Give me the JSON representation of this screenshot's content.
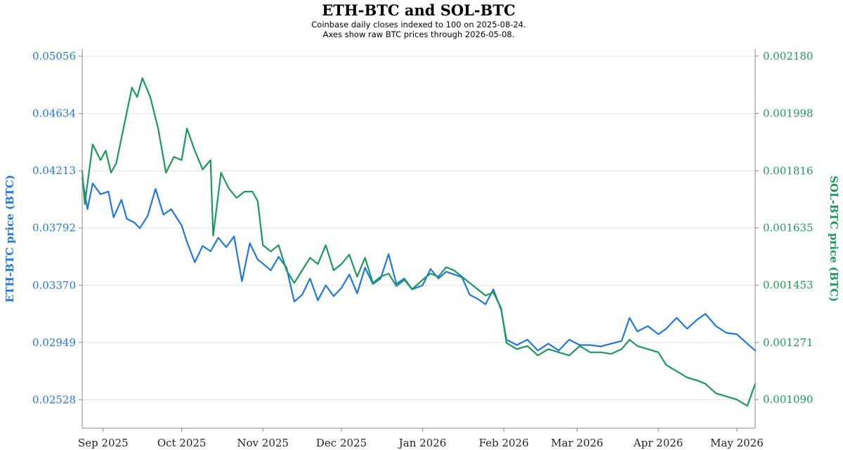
{
  "chart_data": {
    "type": "line",
    "title": "ETH-BTC and SOL-BTC",
    "subtitle_lines": [
      "Coinbase daily closes indexed to 100 on 2025-08-24.",
      "Axes show raw BTC prices through 2026-05-08."
    ],
    "x_range": [
      "2025-08-24",
      "2026-05-08"
    ],
    "x_tick_labels": [
      "Sep 2025",
      "Oct 2025",
      "Nov 2025",
      "Dec 2025",
      "Jan 2026",
      "Feb 2026",
      "Mar 2026",
      "Apr 2026",
      "May 2026"
    ],
    "x_tick_dates": [
      "2025-09-01",
      "2025-10-01",
      "2025-11-01",
      "2025-12-01",
      "2026-01-01",
      "2026-02-01",
      "2026-03-01",
      "2026-04-01",
      "2026-05-01"
    ],
    "y_left": {
      "label": "ETH-BTC price (BTC)",
      "range": [
        0.02318,
        0.05108
      ],
      "tick_labels": [
        "0.05056",
        "0.04634",
        "0.04213",
        "0.03792",
        "0.03370",
        "0.02949",
        "0.02528"
      ],
      "ticks": [
        0.05056,
        0.04634,
        0.04213,
        0.03792,
        0.0337,
        0.02949,
        0.02528
      ],
      "color": "#1f77e0"
    },
    "y_right": {
      "label": "SOL-BTC price (BTC)",
      "range": [
        0.000999,
        0.002202
      ],
      "tick_labels": [
        "0.002180",
        "0.001998",
        "0.001816",
        "0.001635",
        "0.001453",
        "0.001271",
        "0.001090"
      ],
      "ticks": [
        0.00218,
        0.001998,
        0.001816,
        0.001635,
        0.001453,
        0.001271,
        0.00109
      ],
      "color": "#1a9a5a"
    },
    "grid": true,
    "series": [
      {
        "name": "ETH-BTC",
        "axis": "left",
        "color": "#1f77e0",
        "points": [
          [
            "2025-08-24",
            0.0416
          ],
          [
            "2025-08-26",
            0.0393
          ],
          [
            "2025-08-28",
            0.0412
          ],
          [
            "2025-08-31",
            0.0404
          ],
          [
            "2025-09-03",
            0.0406
          ],
          [
            "2025-09-05",
            0.0387
          ],
          [
            "2025-09-08",
            0.04
          ],
          [
            "2025-09-10",
            0.0386
          ],
          [
            "2025-09-13",
            0.0383
          ],
          [
            "2025-09-15",
            0.0379
          ],
          [
            "2025-09-18",
            0.0388
          ],
          [
            "2025-09-21",
            0.0408
          ],
          [
            "2025-09-24",
            0.0389
          ],
          [
            "2025-09-27",
            0.0393
          ],
          [
            "2025-10-01",
            0.0381
          ],
          [
            "2025-10-03",
            0.0369
          ],
          [
            "2025-10-06",
            0.0354
          ],
          [
            "2025-10-09",
            0.0366
          ],
          [
            "2025-10-12",
            0.0362
          ],
          [
            "2025-10-15",
            0.0372
          ],
          [
            "2025-10-18",
            0.0365
          ],
          [
            "2025-10-21",
            0.0373
          ],
          [
            "2025-10-24",
            0.034
          ],
          [
            "2025-10-27",
            0.0368
          ],
          [
            "2025-10-30",
            0.0356
          ],
          [
            "2025-11-01",
            0.0353
          ],
          [
            "2025-11-04",
            0.0348
          ],
          [
            "2025-11-07",
            0.0358
          ],
          [
            "2025-11-10",
            0.035
          ],
          [
            "2025-11-13",
            0.0325
          ],
          [
            "2025-11-16",
            0.033
          ],
          [
            "2025-11-19",
            0.0342
          ],
          [
            "2025-11-22",
            0.0326
          ],
          [
            "2025-11-25",
            0.0337
          ],
          [
            "2025-11-28",
            0.0329
          ],
          [
            "2025-12-01",
            0.0335
          ],
          [
            "2025-12-04",
            0.0345
          ],
          [
            "2025-12-07",
            0.0331
          ],
          [
            "2025-12-10",
            0.035
          ],
          [
            "2025-12-13",
            0.0338
          ],
          [
            "2025-12-16",
            0.0342
          ],
          [
            "2025-12-19",
            0.036
          ],
          [
            "2025-12-22",
            0.0338
          ],
          [
            "2025-12-25",
            0.0342
          ],
          [
            "2025-12-28",
            0.0334
          ],
          [
            "2026-01-01",
            0.0337
          ],
          [
            "2026-01-04",
            0.0349
          ],
          [
            "2026-01-07",
            0.0342
          ],
          [
            "2026-01-10",
            0.0347
          ],
          [
            "2026-01-13",
            0.0345
          ],
          [
            "2026-01-16",
            0.0343
          ],
          [
            "2026-01-19",
            0.033
          ],
          [
            "2026-01-22",
            0.0327
          ],
          [
            "2026-01-25",
            0.0323
          ],
          [
            "2026-01-28",
            0.0334
          ],
          [
            "2026-01-31",
            0.0319
          ],
          [
            "2026-02-02",
            0.0297
          ],
          [
            "2026-02-06",
            0.0293
          ],
          [
            "2026-02-10",
            0.0297
          ],
          [
            "2026-02-14",
            0.0289
          ],
          [
            "2026-02-18",
            0.0294
          ],
          [
            "2026-02-22",
            0.0289
          ],
          [
            "2026-02-26",
            0.0297
          ],
          [
            "2026-03-02",
            0.0293
          ],
          [
            "2026-03-06",
            0.0293
          ],
          [
            "2026-03-10",
            0.0292
          ],
          [
            "2026-03-14",
            0.0294
          ],
          [
            "2026-03-18",
            0.0296
          ],
          [
            "2026-03-21",
            0.0313
          ],
          [
            "2026-03-24",
            0.0303
          ],
          [
            "2026-03-28",
            0.0307
          ],
          [
            "2026-04-01",
            0.0301
          ],
          [
            "2026-04-04",
            0.0305
          ],
          [
            "2026-04-08",
            0.0313
          ],
          [
            "2026-04-12",
            0.0305
          ],
          [
            "2026-04-16",
            0.0312
          ],
          [
            "2026-04-19",
            0.0316
          ],
          [
            "2026-04-23",
            0.0307
          ],
          [
            "2026-04-27",
            0.0302
          ],
          [
            "2026-05-01",
            0.0301
          ],
          [
            "2026-05-05",
            0.0294
          ],
          [
            "2026-05-08",
            0.0289
          ]
        ]
      },
      {
        "name": "SOL-BTC",
        "axis": "right",
        "color": "#1a9a5a",
        "points": [
          [
            "2025-08-24",
            0.001816
          ],
          [
            "2025-08-25",
            0.00171
          ],
          [
            "2025-08-28",
            0.0019
          ],
          [
            "2025-08-31",
            0.00185
          ],
          [
            "2025-09-02",
            0.00188
          ],
          [
            "2025-09-04",
            0.00181
          ],
          [
            "2025-09-06",
            0.00184
          ],
          [
            "2025-09-09",
            0.00196
          ],
          [
            "2025-09-12",
            0.00208
          ],
          [
            "2025-09-14",
            0.00205
          ],
          [
            "2025-09-16",
            0.00211
          ],
          [
            "2025-09-19",
            0.00205
          ],
          [
            "2025-09-22",
            0.00195
          ],
          [
            "2025-09-25",
            0.00181
          ],
          [
            "2025-09-28",
            0.00186
          ],
          [
            "2025-10-01",
            0.00185
          ],
          [
            "2025-10-03",
            0.00195
          ],
          [
            "2025-10-06",
            0.00188
          ],
          [
            "2025-10-09",
            0.00182
          ],
          [
            "2025-10-12",
            0.00185
          ],
          [
            "2025-10-13",
            0.00161
          ],
          [
            "2025-10-16",
            0.00181
          ],
          [
            "2025-10-19",
            0.00176
          ],
          [
            "2025-10-22",
            0.00173
          ],
          [
            "2025-10-25",
            0.00175
          ],
          [
            "2025-10-28",
            0.00175
          ],
          [
            "2025-10-30",
            0.00172
          ],
          [
            "2025-11-01",
            0.00158
          ],
          [
            "2025-11-04",
            0.00156
          ],
          [
            "2025-11-07",
            0.00158
          ],
          [
            "2025-11-10",
            0.0015
          ],
          [
            "2025-11-13",
            0.00146
          ],
          [
            "2025-11-16",
            0.0015
          ],
          [
            "2025-11-19",
            0.00154
          ],
          [
            "2025-11-22",
            0.00152
          ],
          [
            "2025-11-25",
            0.00158
          ],
          [
            "2025-11-28",
            0.0015
          ],
          [
            "2025-12-01",
            0.00152
          ],
          [
            "2025-12-04",
            0.00155
          ],
          [
            "2025-12-07",
            0.00148
          ],
          [
            "2025-12-10",
            0.00154
          ],
          [
            "2025-12-13",
            0.00146
          ],
          [
            "2025-12-16",
            0.00148
          ],
          [
            "2025-12-19",
            0.00149
          ],
          [
            "2025-12-22",
            0.00145
          ],
          [
            "2025-12-25",
            0.00147
          ],
          [
            "2025-12-28",
            0.00144
          ],
          [
            "2026-01-01",
            0.00147
          ],
          [
            "2026-01-04",
            0.00149
          ],
          [
            "2026-01-07",
            0.00148
          ],
          [
            "2026-01-10",
            0.00151
          ],
          [
            "2026-01-13",
            0.0015
          ],
          [
            "2026-01-16",
            0.00148
          ],
          [
            "2026-01-19",
            0.00146
          ],
          [
            "2026-01-22",
            0.00144
          ],
          [
            "2026-01-25",
            0.00142
          ],
          [
            "2026-01-28",
            0.00143
          ],
          [
            "2026-01-31",
            0.00138
          ],
          [
            "2026-02-02",
            0.00127
          ],
          [
            "2026-02-06",
            0.00125
          ],
          [
            "2026-02-10",
            0.00126
          ],
          [
            "2026-02-14",
            0.00123
          ],
          [
            "2026-02-18",
            0.00125
          ],
          [
            "2026-02-22",
            0.00124
          ],
          [
            "2026-02-26",
            0.00123
          ],
          [
            "2026-03-02",
            0.00126
          ],
          [
            "2026-03-06",
            0.00124
          ],
          [
            "2026-03-10",
            0.00124
          ],
          [
            "2026-03-14",
            0.001235
          ],
          [
            "2026-03-18",
            0.00125
          ],
          [
            "2026-03-21",
            0.00128
          ],
          [
            "2026-03-24",
            0.00126
          ],
          [
            "2026-03-28",
            0.00125
          ],
          [
            "2026-04-01",
            0.00124
          ],
          [
            "2026-04-04",
            0.0012
          ],
          [
            "2026-04-08",
            0.00118
          ],
          [
            "2026-04-12",
            0.00116
          ],
          [
            "2026-04-16",
            0.00115
          ],
          [
            "2026-04-19",
            0.00114
          ],
          [
            "2026-04-23",
            0.00111
          ],
          [
            "2026-04-27",
            0.0011
          ],
          [
            "2026-05-01",
            0.00109
          ],
          [
            "2026-05-05",
            0.00107
          ],
          [
            "2026-05-08",
            0.00114
          ]
        ]
      }
    ]
  }
}
